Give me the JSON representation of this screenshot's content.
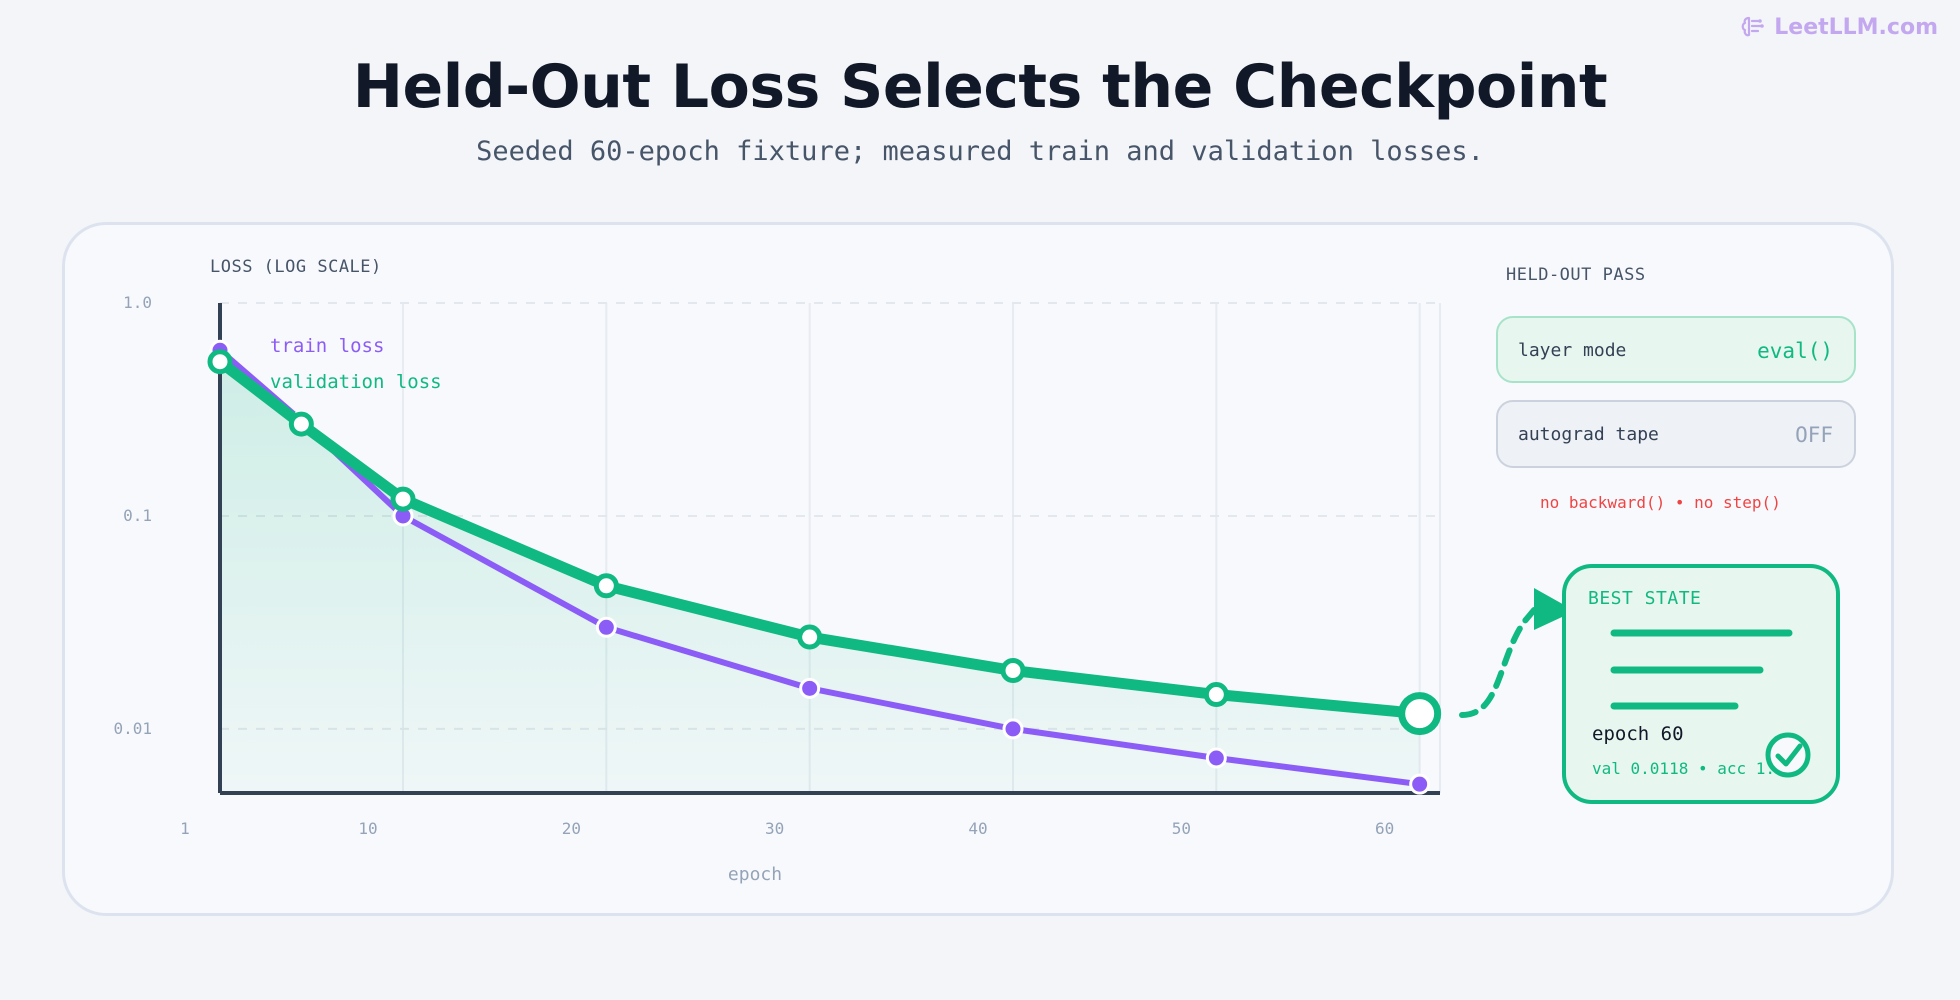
{
  "brand": {
    "name": "LeetLLM.com",
    "icon": "brain-icon"
  },
  "header": {
    "title": "Held-Out Loss Selects the Checkpoint",
    "subtitle": "Seeded 60-epoch fixture; measured train and validation losses."
  },
  "colors": {
    "train": "#8b5cf6",
    "validation": "#10b981",
    "warning": "#ef4444",
    "axis": "#334155"
  },
  "chart_data": {
    "type": "line",
    "ylabel": "LOSS (LOG SCALE)",
    "xlabel": "epoch",
    "yscale": "log",
    "ylim": [
      0.005,
      1.0
    ],
    "xlim": [
      1,
      61
    ],
    "yticks": [
      1.0,
      0.1,
      0.01
    ],
    "ytick_labels": [
      "1.0",
      "0.1",
      "0.01"
    ],
    "xticks": [
      1,
      10,
      20,
      30,
      40,
      50,
      60
    ],
    "grid": true,
    "legend_position": "top-left",
    "series": [
      {
        "name": "train loss",
        "x": [
          1,
          5,
          10,
          20,
          30,
          40,
          50,
          60
        ],
        "y": [
          0.6,
          0.28,
          0.1,
          0.03,
          0.0155,
          0.01,
          0.0073,
          0.0055
        ]
      },
      {
        "name": "validation loss",
        "x": [
          1,
          5,
          10,
          20,
          30,
          40,
          50,
          60
        ],
        "y": [
          0.53,
          0.27,
          0.12,
          0.047,
          0.027,
          0.0188,
          0.0145,
          0.0118
        ]
      }
    ]
  },
  "heldout": {
    "heading": "HELD-OUT PASS",
    "layer_mode_label": "layer mode",
    "layer_mode_value": "eval()",
    "autograd_label": "autograd tape",
    "autograd_value": "OFF",
    "warning": "no backward() • no step()"
  },
  "best_state": {
    "heading": "BEST STATE",
    "epoch_text": "epoch 60",
    "metrics_text": "val 0.0118 • acc 1.0",
    "status_icon": "check-circle-icon"
  }
}
